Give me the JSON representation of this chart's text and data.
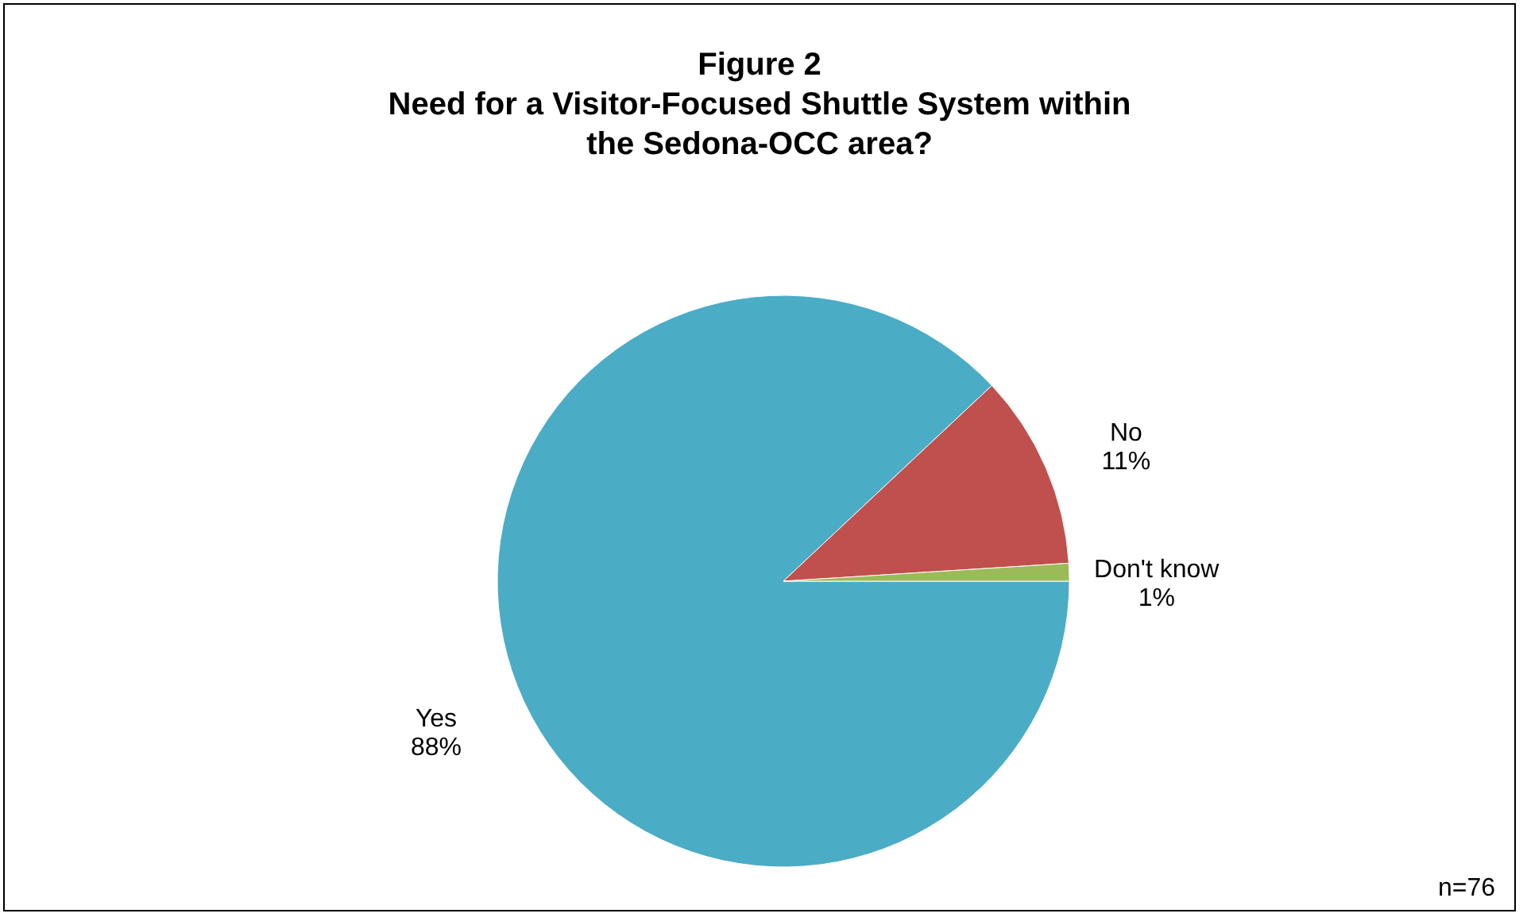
{
  "chart_data": {
    "type": "pie",
    "title": "Figure 2\nNeed for a Visitor-Focused Shuttle System within\nthe Sedona-OCC area?",
    "categories": [
      "Yes",
      "No",
      "Don't know"
    ],
    "values": [
      88,
      11,
      1
    ],
    "value_labels": [
      "88%",
      "11%",
      "1%"
    ],
    "colors": [
      "#4bacc6",
      "#c0504d",
      "#9bbb59"
    ],
    "annotations": [
      "n=76"
    ],
    "legend": false
  }
}
